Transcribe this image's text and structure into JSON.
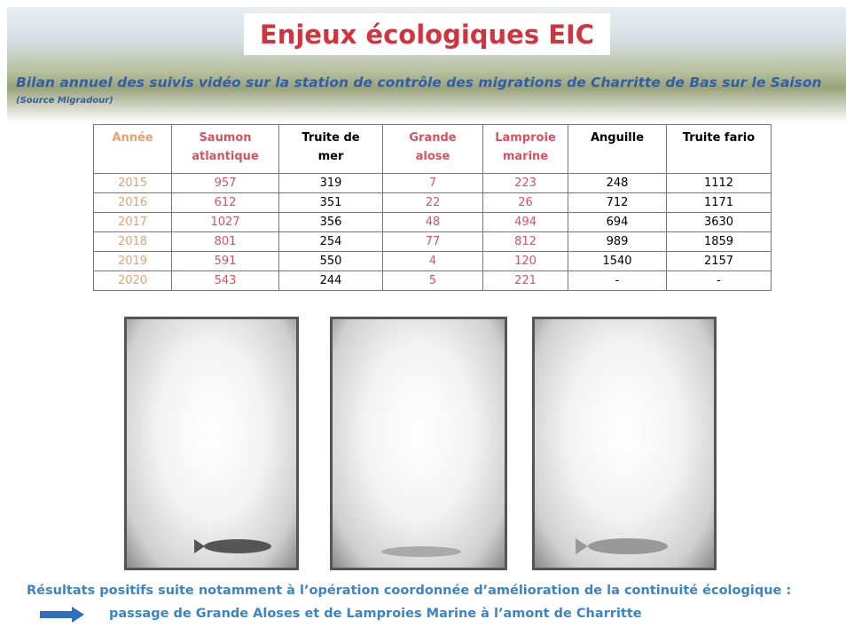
{
  "header": {
    "title": "Enjeux écologiques EIC",
    "subtitle": "Bilan annuel des suivis vidéo sur la station de contrôle des migrations de Charritte de Bas sur le Saison",
    "source": "(Source Migradour)"
  },
  "table": {
    "columns": [
      "Année",
      "Saumon atlantique",
      "Truite de mer",
      "Grande alose",
      "Lamproie marine",
      "Anguille",
      "Truite fario"
    ],
    "rows": [
      [
        2015,
        957,
        319,
        7,
        223,
        248,
        1112
      ],
      [
        2016,
        612,
        351,
        22,
        26,
        712,
        1171
      ],
      [
        2017,
        1027,
        356,
        48,
        494,
        694,
        3630
      ],
      [
        2018,
        801,
        254,
        77,
        812,
        989,
        1859
      ],
      [
        2019,
        591,
        550,
        4,
        120,
        1540,
        2157
      ],
      [
        2020,
        543,
        244,
        5,
        221,
        "-",
        "-"
      ]
    ]
  },
  "footer": {
    "line1": "Résultats positifs suite notamment à l’opération coordonnée d’amélioration de la continuité écologique :",
    "line2": "passage de Grande Aloses et de Lamproies Marine à l’amont de Charritte"
  }
}
